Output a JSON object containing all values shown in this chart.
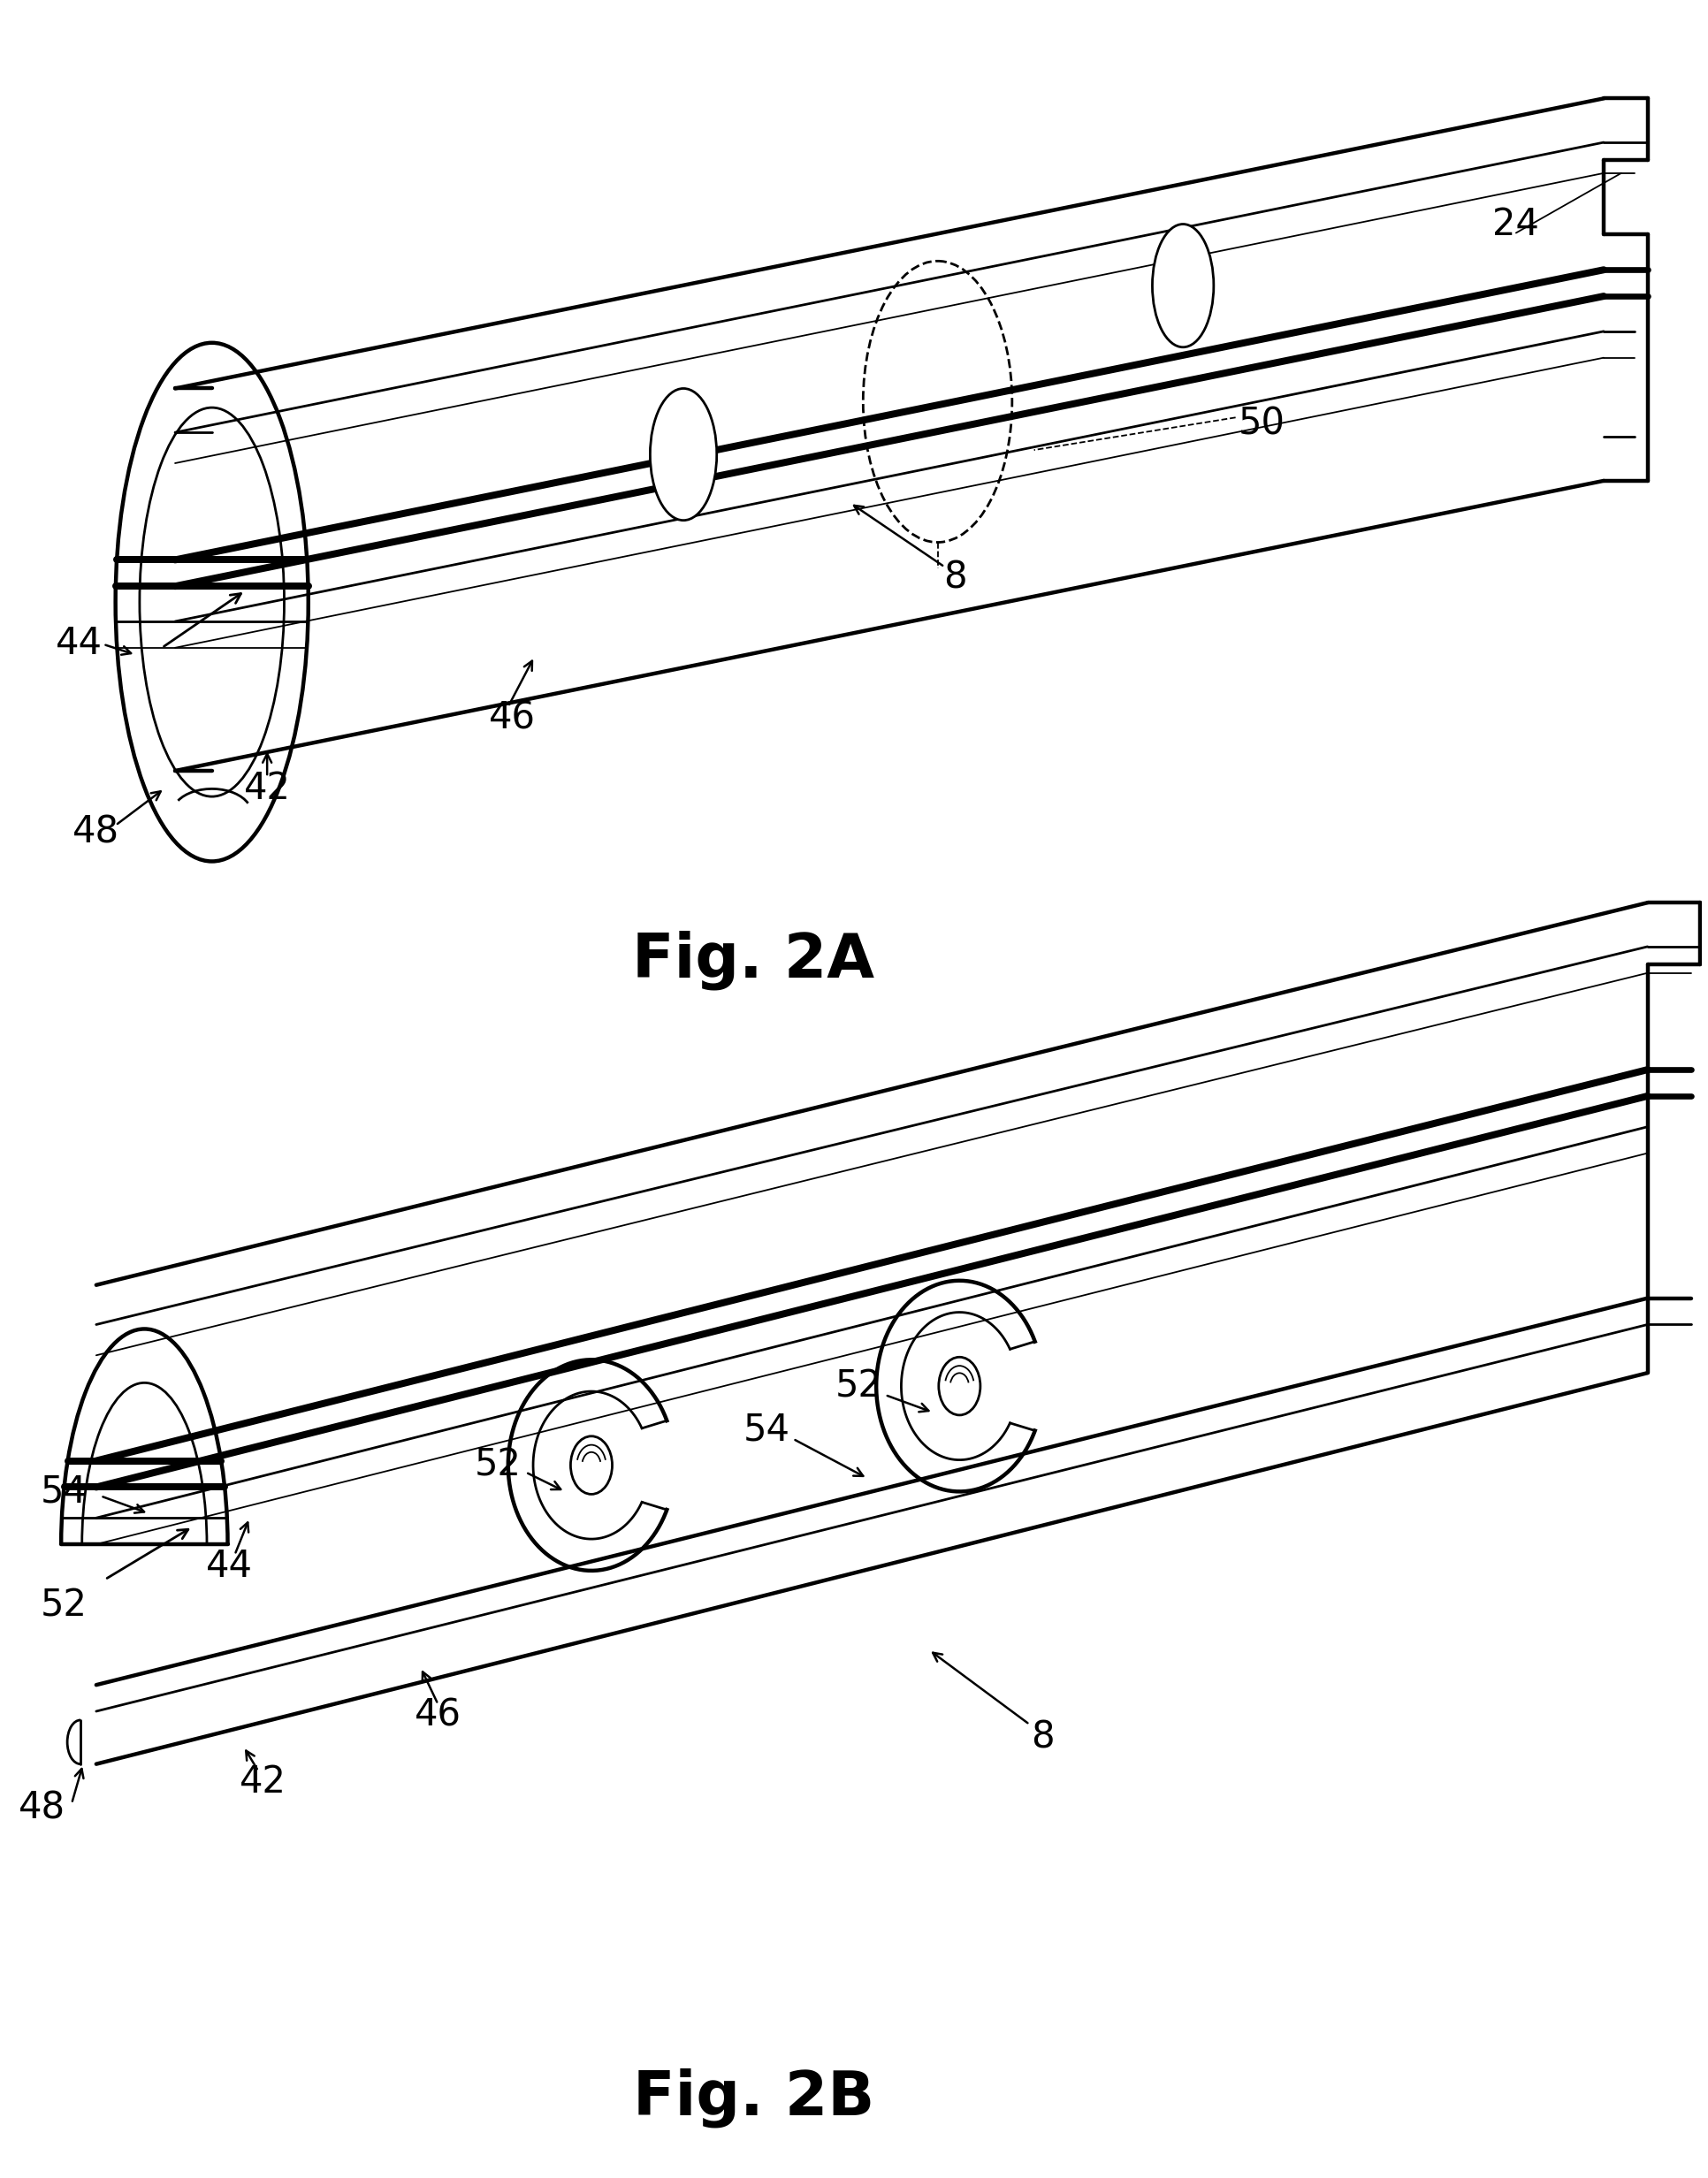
{
  "background_color": "#ffffff",
  "fig_width": 19.32,
  "fig_height": 24.64,
  "fig2a_label": "Fig. 2A",
  "fig2b_label": "Fig. 2B",
  "ann_fs": 30,
  "cap_fs": 50,
  "lw_thick": 3.2,
  "lw_med": 2.0,
  "lw_thin": 1.3,
  "lw_vt": 0.8
}
